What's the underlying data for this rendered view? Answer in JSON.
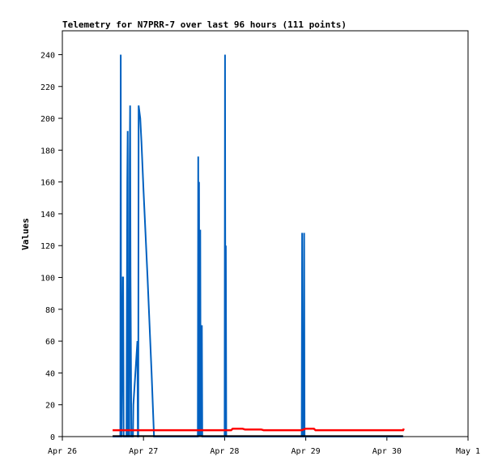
{
  "chart_data": {
    "type": "line",
    "title": "Telemetry for N7PRR-7 over last 96 hours (111 points)",
    "xlabel": "",
    "ylabel": "Values",
    "ylim": [
      0,
      255
    ],
    "x_ticks": [
      "Apr 26",
      "Apr 27",
      "Apr 28",
      "Apr 29",
      "Apr 30",
      "May 1"
    ],
    "y_ticks": [
      0,
      20,
      40,
      60,
      80,
      100,
      120,
      140,
      160,
      180,
      200,
      220,
      240
    ],
    "xlim_days": [
      0,
      5
    ],
    "grid": false,
    "series": [
      {
        "color": "#0060c0",
        "points": [
          [
            0.62,
            0
          ],
          [
            0.715,
            0
          ],
          [
            0.72,
            240
          ],
          [
            0.725,
            0
          ],
          [
            0.73,
            0
          ],
          [
            0.745,
            100
          ],
          [
            0.75,
            100
          ],
          [
            0.755,
            0
          ],
          [
            0.79,
            0
          ],
          [
            0.8,
            160
          ],
          [
            0.805,
            192
          ],
          [
            0.81,
            0
          ],
          [
            0.825,
            0
          ],
          [
            0.83,
            173
          ],
          [
            0.835,
            208
          ],
          [
            0.84,
            100
          ],
          [
            0.85,
            0
          ],
          [
            0.87,
            0
          ],
          [
            0.875,
            20
          ],
          [
            0.9,
            40
          ],
          [
            0.925,
            60
          ],
          [
            0.93,
            0
          ],
          [
            0.935,
            0
          ],
          [
            0.94,
            208
          ],
          [
            0.96,
            200
          ],
          [
            0.975,
            185
          ],
          [
            1.0,
            155
          ],
          [
            1.05,
            100
          ],
          [
            1.1,
            40
          ],
          [
            1.13,
            0
          ],
          [
            1.67,
            0
          ],
          [
            1.675,
            176
          ],
          [
            1.68,
            0
          ],
          [
            1.685,
            160
          ],
          [
            1.69,
            0
          ],
          [
            1.7,
            130
          ],
          [
            1.705,
            0
          ],
          [
            1.72,
            70
          ],
          [
            1.725,
            0
          ],
          [
            2.0,
            0
          ],
          [
            2.005,
            240
          ],
          [
            2.01,
            0
          ],
          [
            2.015,
            120
          ],
          [
            2.02,
            0
          ],
          [
            2.95,
            0
          ],
          [
            2.955,
            128
          ],
          [
            2.96,
            0
          ],
          [
            2.975,
            0
          ],
          [
            2.98,
            128
          ],
          [
            2.985,
            0
          ],
          [
            4.2,
            0
          ]
        ]
      },
      {
        "color": "#ff0000",
        "points": [
          [
            0.62,
            4
          ],
          [
            2.08,
            4
          ],
          [
            2.1,
            5
          ],
          [
            2.22,
            5
          ],
          [
            2.25,
            4.5
          ],
          [
            2.45,
            4.5
          ],
          [
            2.48,
            4
          ],
          [
            2.95,
            4
          ],
          [
            3.0,
            5
          ],
          [
            3.1,
            5
          ],
          [
            3.12,
            4
          ],
          [
            4.2,
            4
          ],
          [
            4.21,
            5
          ]
        ]
      },
      {
        "color": "#000000",
        "points": [
          [
            0.62,
            0.3
          ],
          [
            4.2,
            0.3
          ]
        ]
      }
    ]
  }
}
